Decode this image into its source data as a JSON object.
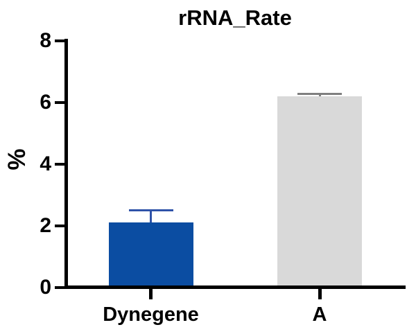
{
  "chart_data": {
    "type": "bar",
    "title": "rRNA_Rate",
    "ylabel": "%",
    "xlabel": "",
    "categories": [
      "Dynegene",
      "A"
    ],
    "values": [
      2.1,
      6.2
    ],
    "error_plus": [
      0.4,
      0.08
    ],
    "ylim": [
      0,
      8
    ],
    "yticks": [
      0,
      2,
      4,
      6,
      8
    ],
    "grid": false,
    "legend": "none",
    "bar_colors": [
      "#0b4da2",
      "#d9d9d9"
    ],
    "error_colors": [
      "#2e52a8",
      "#7f7f7f"
    ],
    "axis_color": "#000000",
    "text_color": "#000000",
    "background_color": "#ffffff"
  }
}
